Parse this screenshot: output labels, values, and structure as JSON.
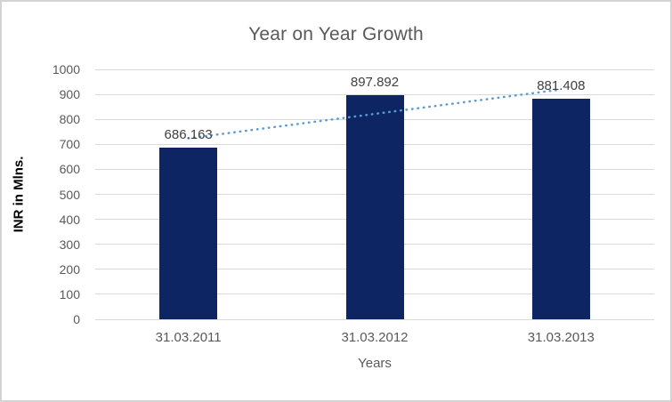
{
  "window": {
    "background": "#ffffff",
    "border_color": "#d3d3d3"
  },
  "chart_data": {
    "type": "bar",
    "title": "Year on Year Growth",
    "xlabel": "Years",
    "ylabel": "INR in Mlns.",
    "categories": [
      "31.03.2011",
      "31.03.2012",
      "31.03.2013"
    ],
    "values": [
      686.163,
      897.892,
      881.408
    ],
    "data_labels": [
      "686.163",
      "897.892",
      "881.408"
    ],
    "ylim": [
      0,
      1000
    ],
    "ytick_step": 100,
    "grid": true,
    "legend": false,
    "bar_color": "#0e2563",
    "gridline_color": "#d9d9d9",
    "title_color": "#595959",
    "axis_text_color": "#595959",
    "data_label_color": "#404040",
    "trendline": {
      "fit": "linear",
      "style": "dotted",
      "color": "#5b9bd5"
    }
  }
}
